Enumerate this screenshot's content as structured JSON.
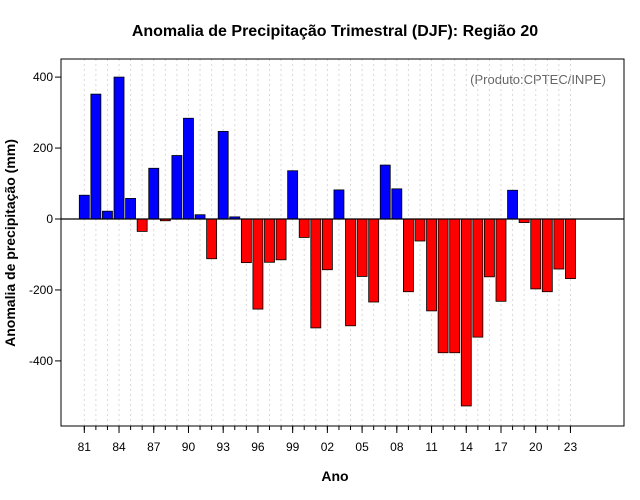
{
  "chart_data": {
    "type": "bar",
    "title": "Anomalia de Precipitação Trimestral (DJF): Região 20",
    "xlabel": "Ano",
    "ylabel": "Anomalia de precipitação (mm)",
    "annotation": "(Produto:CPTEC/INPE)",
    "ylim": [
      -580,
      450
    ],
    "yticks": [
      -400,
      -200,
      0,
      200,
      400
    ],
    "xtick_labels": [
      "81",
      "84",
      "87",
      "90",
      "93",
      "96",
      "99",
      "02",
      "05",
      "08",
      "11",
      "14",
      "17",
      "20",
      "23"
    ],
    "xtick_years": [
      1981,
      1984,
      1987,
      1990,
      1993,
      1996,
      1999,
      2002,
      2005,
      2008,
      2011,
      2014,
      2017,
      2020,
      2023
    ],
    "grid": true,
    "colors": {
      "positive": "#0000ff",
      "negative": "#ff0000",
      "grid": "#d9d9d9",
      "axis": "#000000"
    },
    "categories": [
      1981,
      1982,
      1983,
      1984,
      1985,
      1986,
      1987,
      1988,
      1989,
      1990,
      1991,
      1992,
      1993,
      1994,
      1995,
      1996,
      1997,
      1998,
      1999,
      2000,
      2001,
      2002,
      2003,
      2004,
      2005,
      2006,
      2007,
      2008,
      2009,
      2010,
      2011,
      2012,
      2013,
      2014,
      2015,
      2016,
      2017,
      2018,
      2019,
      2020,
      2021,
      2022,
      2023
    ],
    "values": [
      67,
      352,
      22,
      400,
      58,
      -35,
      143,
      -5,
      179,
      284,
      12,
      -112,
      247,
      6,
      -123,
      -254,
      -122,
      -115,
      136,
      -52,
      -307,
      -143,
      82,
      -301,
      -162,
      -234,
      152,
      85,
      -205,
      -62,
      -259,
      -377,
      -377,
      -527,
      -333,
      -163,
      -232,
      81,
      -10,
      -197,
      -205,
      -141,
      -168
    ]
  }
}
